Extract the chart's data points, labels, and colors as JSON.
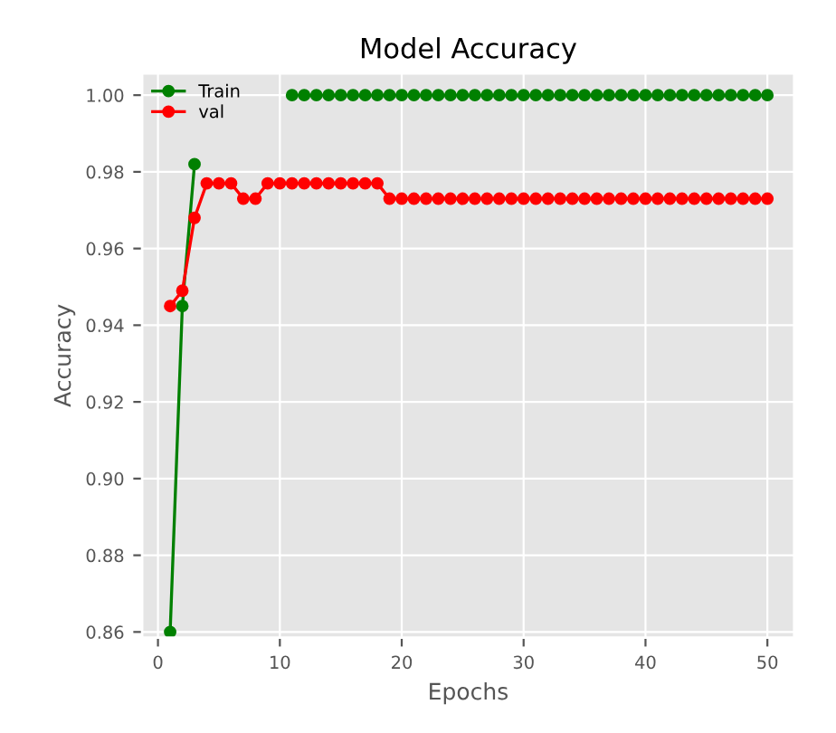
{
  "chart_data": {
    "type": "line",
    "title": "Model Accuracy",
    "xlabel": "Epochs",
    "ylabel": "Accuracy",
    "x": [
      1,
      2,
      3,
      4,
      5,
      6,
      7,
      8,
      9,
      10,
      11,
      12,
      13,
      14,
      15,
      16,
      17,
      18,
      19,
      20,
      21,
      22,
      23,
      24,
      25,
      26,
      27,
      28,
      29,
      30,
      31,
      32,
      33,
      34,
      35,
      36,
      37,
      38,
      39,
      40,
      41,
      42,
      43,
      44,
      45,
      46,
      47,
      48,
      49,
      50
    ],
    "series": [
      {
        "name": "Train",
        "color": "#008000",
        "values": [
          0.86,
          0.945,
          0.982,
          null,
          null,
          null,
          null,
          null,
          null,
          null,
          1.0,
          1.0,
          1.0,
          1.0,
          1.0,
          1.0,
          1.0,
          1.0,
          1.0,
          1.0,
          1.0,
          1.0,
          1.0,
          1.0,
          1.0,
          1.0,
          1.0,
          1.0,
          1.0,
          1.0,
          1.0,
          1.0,
          1.0,
          1.0,
          1.0,
          1.0,
          1.0,
          1.0,
          1.0,
          1.0,
          1.0,
          1.0,
          1.0,
          1.0,
          1.0,
          1.0,
          1.0,
          1.0,
          1.0,
          1.0
        ]
      },
      {
        "name": "val",
        "color": "#ff0000",
        "values": [
          0.945,
          0.949,
          0.968,
          0.977,
          0.977,
          0.977,
          0.973,
          0.973,
          0.977,
          0.977,
          0.977,
          0.977,
          0.977,
          0.977,
          0.977,
          0.977,
          0.977,
          0.977,
          0.973,
          0.973,
          0.973,
          0.973,
          0.973,
          0.973,
          0.973,
          0.973,
          0.973,
          0.973,
          0.973,
          0.973,
          0.973,
          0.973,
          0.973,
          0.973,
          0.973,
          0.973,
          0.973,
          0.973,
          0.973,
          0.973,
          0.973,
          0.973,
          0.973,
          0.973,
          0.973,
          0.973,
          0.973,
          0.973,
          0.973,
          0.973
        ]
      }
    ],
    "xlim": [
      -1.3,
      52.2
    ],
    "ylim": [
      0.8585,
      1.0057
    ],
    "xticks": [
      0,
      10,
      20,
      30,
      40,
      50
    ],
    "yticks": [
      {
        "value": 0.86,
        "label": "0.86"
      },
      {
        "value": 0.88,
        "label": "0.88"
      },
      {
        "value": 0.9,
        "label": "0.90"
      },
      {
        "value": 0.92,
        "label": "0.92"
      },
      {
        "value": 0.94,
        "label": "0.94"
      },
      {
        "value": 0.96,
        "label": "0.96"
      },
      {
        "value": 0.98,
        "label": "0.98"
      },
      {
        "value": 1.0,
        "label": "1.00"
      }
    ],
    "grid": true,
    "legend": "top left",
    "marker": "circle",
    "line_style": "solid"
  }
}
